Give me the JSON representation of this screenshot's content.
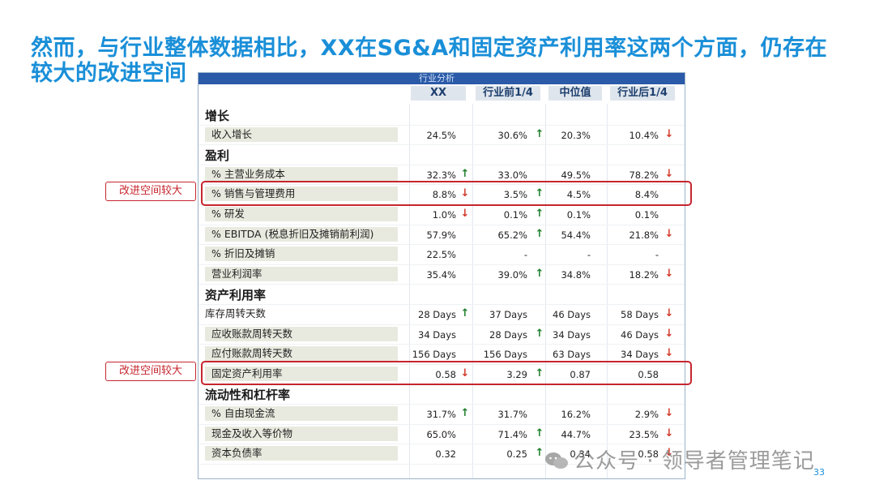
{
  "title": "然而，与行业整体数据相比，XX在SG&A和固定资产利用率这两个方面，仍存在较大的改进空间",
  "table": {
    "caption": "行业分析",
    "columns": [
      "XX",
      "行业前1/4",
      "中位值",
      "行业后1/4"
    ],
    "rows": [
      {
        "type": "section",
        "label": "增长"
      },
      {
        "type": "data",
        "label": "收入增长",
        "values": [
          "24.5%",
          "30.6%",
          "20.3%",
          "10.4%"
        ],
        "arrows": [
          "",
          "up",
          "",
          "down"
        ]
      },
      {
        "type": "section",
        "label": "盈利"
      },
      {
        "type": "data",
        "label": "% 主营业务成本",
        "values": [
          "32.3%",
          "33.0%",
          "49.5%",
          "78.2%"
        ],
        "arrows": [
          "up",
          "",
          "",
          "down"
        ]
      },
      {
        "type": "data",
        "label": "% 销售与管理费用",
        "values": [
          "8.8%",
          "3.5%",
          "4.5%",
          "8.4%"
        ],
        "arrows": [
          "down",
          "up",
          "",
          ""
        ]
      },
      {
        "type": "data",
        "label": "% 研发",
        "values": [
          "1.0%",
          "0.1%",
          "0.1%",
          "0.1%"
        ],
        "arrows": [
          "down",
          "up",
          "",
          ""
        ]
      },
      {
        "type": "data",
        "label": "% EBITDA (税息折旧及摊销前利润)",
        "values": [
          "57.9%",
          "65.2%",
          "54.4%",
          "21.8%"
        ],
        "arrows": [
          "",
          "up",
          "",
          "down"
        ]
      },
      {
        "type": "data",
        "label": "% 折旧及摊销",
        "values": [
          "22.5%",
          "-",
          "-",
          "-"
        ],
        "arrows": [
          "",
          "",
          "",
          ""
        ]
      },
      {
        "type": "data",
        "label": "营业利润率",
        "values": [
          "35.4%",
          "39.0%",
          "34.8%",
          "18.2%"
        ],
        "arrows": [
          "",
          "up",
          "",
          "down"
        ]
      },
      {
        "type": "section",
        "label": "资产利用率"
      },
      {
        "type": "data",
        "label": "库存周转天数",
        "plain": true,
        "values": [
          "28 Days",
          "37 Days",
          "46 Days",
          "58 Days"
        ],
        "arrows": [
          "up",
          "",
          "",
          "down"
        ]
      },
      {
        "type": "data",
        "label": "应收账款周转天数",
        "values": [
          "34 Days",
          "28 Days",
          "34 Days",
          "46 Days"
        ],
        "arrows": [
          "",
          "up",
          "",
          "down"
        ]
      },
      {
        "type": "data",
        "label": "应付账款周转天数",
        "values": [
          "156 Days",
          "156 Days",
          "63 Days",
          "34 Days"
        ],
        "arrows": [
          "",
          "",
          "",
          "down"
        ]
      },
      {
        "type": "data",
        "label": "固定资产利用率",
        "values": [
          "0.58",
          "3.29",
          "0.87",
          "0.58"
        ],
        "arrows": [
          "down",
          "up",
          "",
          ""
        ]
      },
      {
        "type": "section",
        "label": "流动性和杠杆率"
      },
      {
        "type": "data",
        "label": "% 自由现金流",
        "values": [
          "31.7%",
          "31.7%",
          "16.2%",
          "2.9%"
        ],
        "arrows": [
          "up",
          "",
          "",
          "down"
        ]
      },
      {
        "type": "data",
        "label": "现金及收入等价物",
        "values": [
          "65.0%",
          "71.4%",
          "44.7%",
          "23.5%"
        ],
        "arrows": [
          "",
          "up",
          "",
          "down"
        ]
      },
      {
        "type": "data",
        "label": "资本负债率",
        "values": [
          "0.32",
          "0.25",
          "0.34",
          "0.58"
        ],
        "arrows": [
          "",
          "up",
          "",
          "down"
        ]
      }
    ]
  },
  "highlights": [
    {
      "label": "改进空间较大",
      "row_index": 4
    },
    {
      "label": "改进空间较大",
      "row_index": 13
    }
  ],
  "watermark": "公众号 · 领导者管理笔记",
  "page_number": "33"
}
